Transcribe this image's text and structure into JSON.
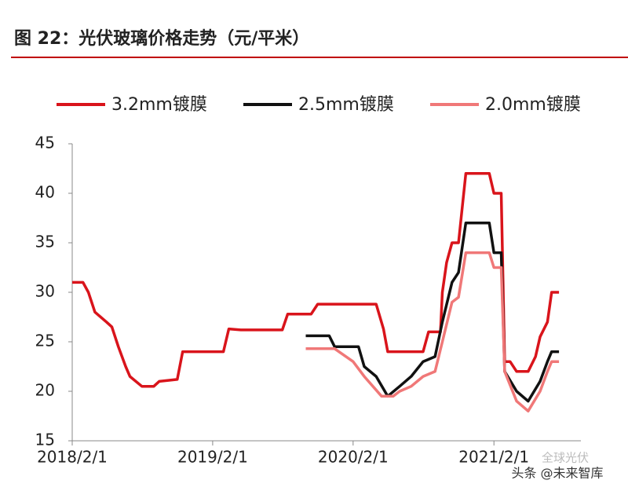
{
  "chart_data": {
    "type": "line",
    "title": "图 22：光伏玻璃价格走势（元/平米）",
    "watermark": "头条 @未来智库",
    "watermark2": "全球光伏",
    "xlim": [
      "2018/2/1",
      "2021/9/15"
    ],
    "xticks": [
      "2018/2/1",
      "2019/2/1",
      "2020/2/1",
      "2021/2/1"
    ],
    "ylim": [
      15,
      45
    ],
    "yticks": [
      15,
      20,
      25,
      30,
      35,
      40,
      45
    ],
    "grid": false,
    "legend": "top",
    "series": [
      {
        "name": "3.2mm镀膜",
        "color": "#d9141b",
        "x": [
          "2018/2/1",
          "2018/3/1",
          "2018/3/15",
          "2018/4/1",
          "2018/5/1",
          "2018/5/15",
          "2018/6/1",
          "2018/6/20",
          "2018/7/1",
          "2018/8/1",
          "2018/9/1",
          "2018/9/15",
          "2018/11/1",
          "2018/11/15",
          "2019/2/1",
          "2019/3/1",
          "2019/3/15",
          "2019/4/15",
          "2019/8/1",
          "2019/8/15",
          "2019/10/15",
          "2019/11/1",
          "2020/4/1",
          "2020/4/20",
          "2020/5/1",
          "2020/8/1",
          "2020/8/15",
          "2020/9/15",
          "2020/9/20",
          "2020/10/1",
          "2020/10/15",
          "2020/11/1",
          "2020/11/20",
          "2021/1/20",
          "2021/2/1",
          "2021/2/20",
          "2021/3/1",
          "2021/3/15",
          "2021/4/1",
          "2021/5/1",
          "2021/5/20",
          "2021/6/1",
          "2021/6/20",
          "2021/7/1",
          "2021/7/20"
        ],
        "values": [
          31,
          31,
          30,
          28,
          27,
          26.5,
          24.5,
          22.5,
          21.5,
          20.5,
          20.5,
          21,
          21.2,
          24,
          24,
          24,
          26.3,
          26.2,
          26.2,
          27.8,
          27.8,
          28.8,
          28.8,
          26.3,
          24,
          24,
          26,
          26,
          30,
          33,
          35,
          35,
          42,
          42,
          40,
          40,
          23,
          23,
          22,
          22,
          23.5,
          25.5,
          27,
          30,
          30
        ]
      },
      {
        "name": "2.5mm镀膜",
        "color": "#111111",
        "x": [
          "2019/10/1",
          "2019/12/1",
          "2019/12/15",
          "2020/2/15",
          "2020/3/1",
          "2020/4/1",
          "2020/5/1",
          "2020/6/1",
          "2020/7/1",
          "2020/8/1",
          "2020/9/1",
          "2020/9/20",
          "2020/10/15",
          "2020/11/1",
          "2020/11/20",
          "2021/1/20",
          "2021/2/1",
          "2021/2/20",
          "2021/3/1",
          "2021/4/1",
          "2021/5/1",
          "2021/6/1",
          "2021/6/20",
          "2021/7/1",
          "2021/7/20"
        ],
        "values": [
          25.6,
          25.6,
          24.5,
          24.5,
          22.5,
          21.5,
          19.5,
          20.5,
          21.5,
          23,
          23.5,
          27,
          31,
          32,
          37,
          37,
          34,
          34,
          22,
          20,
          19,
          21,
          23,
          24,
          24
        ]
      },
      {
        "name": "2.0mm镀膜",
        "color": "#f07878",
        "x": [
          "2019/10/1",
          "2019/12/15",
          "2020/2/1",
          "2020/3/1",
          "2020/4/15",
          "2020/5/15",
          "2020/6/1",
          "2020/7/1",
          "2020/8/1",
          "2020/9/1",
          "2020/9/20",
          "2020/10/15",
          "2020/11/1",
          "2020/11/20",
          "2021/1/20",
          "2021/2/1",
          "2021/2/20",
          "2021/3/1",
          "2021/4/1",
          "2021/5/1",
          "2021/6/1",
          "2021/6/20",
          "2021/7/1",
          "2021/7/20"
        ],
        "values": [
          24.3,
          24.3,
          23,
          21.5,
          19.5,
          19.5,
          20,
          20.5,
          21.5,
          22,
          25,
          29,
          29.5,
          34,
          34,
          32.5,
          32.5,
          22,
          19,
          18,
          20,
          22,
          23,
          23
        ]
      }
    ]
  }
}
